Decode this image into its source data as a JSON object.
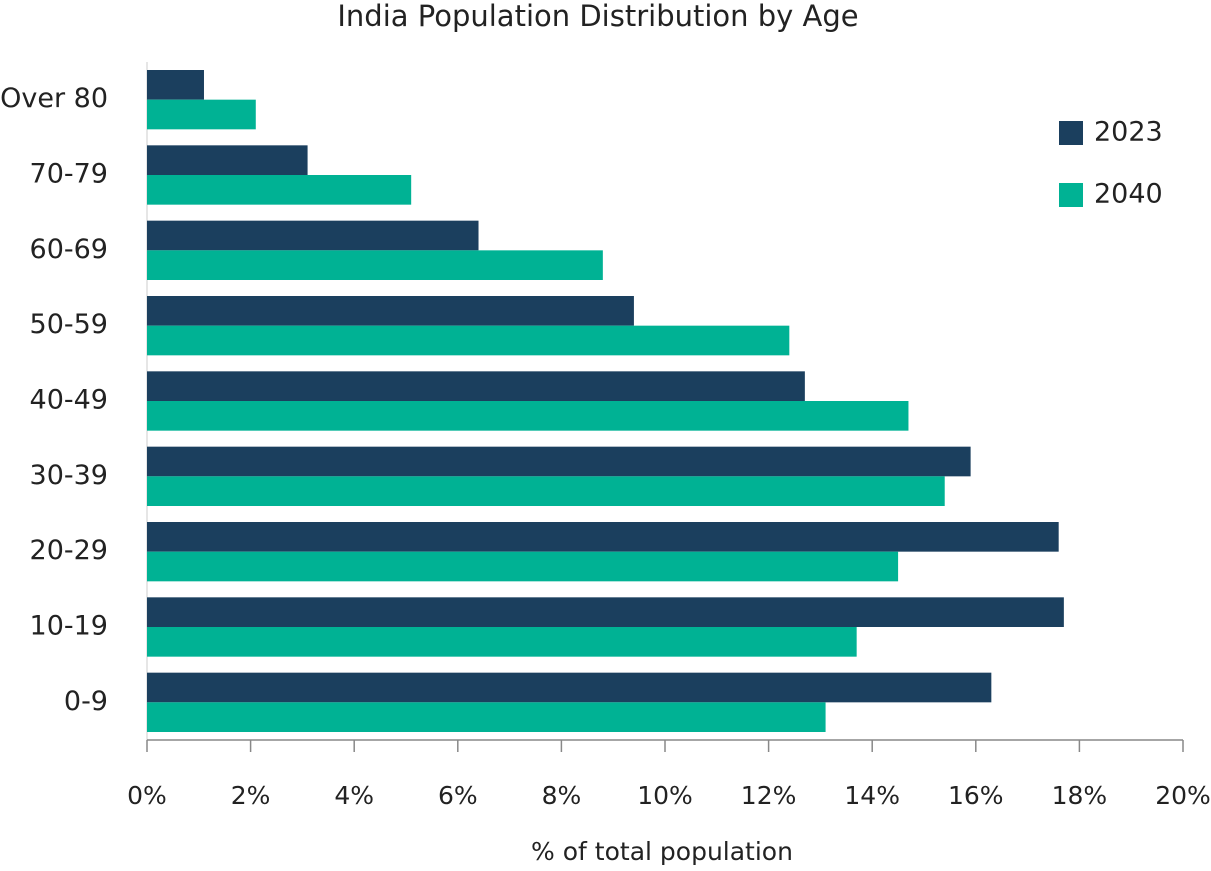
{
  "chart_data": {
    "type": "barh",
    "title": "India Population Distribution by Age",
    "xlabel": "% of total population",
    "categories": [
      "0-9",
      "10-19",
      "20-29",
      "30-39",
      "40-49",
      "50-59",
      "60-69",
      "70-79",
      "Over 80"
    ],
    "series": [
      {
        "name": "2023",
        "color": "#1b3f5e",
        "values": [
          16.3,
          17.7,
          17.6,
          15.9,
          12.7,
          9.4,
          6.4,
          3.1,
          1.1
        ]
      },
      {
        "name": "2040",
        "color": "#00b294",
        "values": [
          13.1,
          13.7,
          14.5,
          15.4,
          14.7,
          12.4,
          8.8,
          5.1,
          2.1
        ]
      }
    ],
    "xlim": [
      0,
      20
    ],
    "xticks": [
      {
        "value": 0,
        "label": "0%"
      },
      {
        "value": 2,
        "label": "2%"
      },
      {
        "value": 4,
        "label": "4%"
      },
      {
        "value": 6,
        "label": "6%"
      },
      {
        "value": 8,
        "label": "8%"
      },
      {
        "value": 10,
        "label": "10%"
      },
      {
        "value": 12,
        "label": "12%"
      },
      {
        "value": 14,
        "label": "14%"
      },
      {
        "value": 16,
        "label": "16%"
      },
      {
        "value": 18,
        "label": "18%"
      },
      {
        "value": 20,
        "label": "20%"
      }
    ],
    "legend": "upper right"
  }
}
